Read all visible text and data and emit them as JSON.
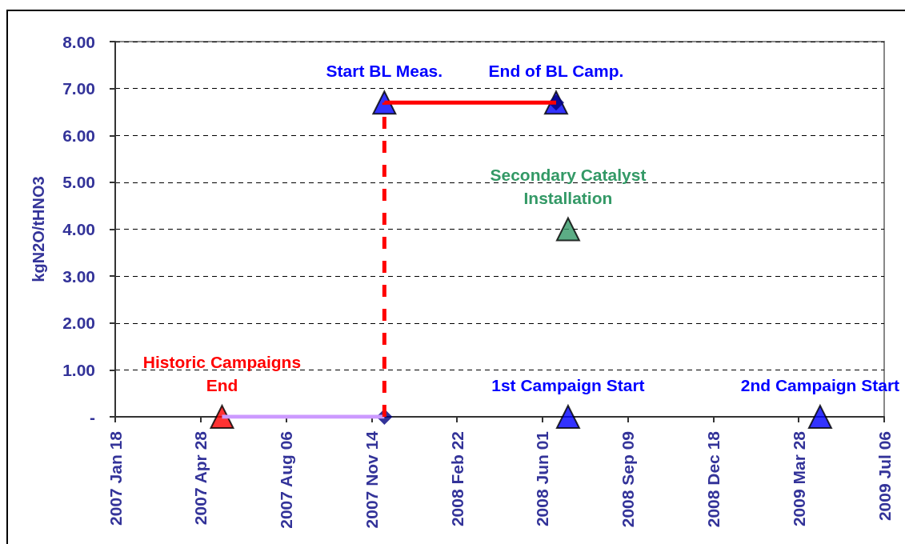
{
  "chart_data": {
    "type": "scatter",
    "ylabel": "kgN2O/tHNO3",
    "xlim": [
      "2007-01-18",
      "2009-07-06"
    ],
    "xticks": [
      {
        "value": "2007-01-18",
        "label": "2007 Jan 18"
      },
      {
        "value": "2007-04-28",
        "label": "2007 Apr 28"
      },
      {
        "value": "2007-08-06",
        "label": "2007 Aug 06"
      },
      {
        "value": "2007-11-14",
        "label": "2007 Nov 14"
      },
      {
        "value": "2008-02-22",
        "label": "2008 Feb 22"
      },
      {
        "value": "2008-06-01",
        "label": "2008 Jun 01"
      },
      {
        "value": "2008-09-09",
        "label": "2008 Sep 09"
      },
      {
        "value": "2008-12-18",
        "label": "2008 Dec 18"
      },
      {
        "value": "2009-03-28",
        "label": "2009 Mar 28"
      },
      {
        "value": "2009-07-06",
        "label": "2009 Jul 06"
      }
    ],
    "ylim": [
      0,
      8
    ],
    "yticks": [
      {
        "value": 0,
        "label": "-"
      },
      {
        "value": 1,
        "label": "1.00"
      },
      {
        "value": 2,
        "label": "2.00"
      },
      {
        "value": 3,
        "label": "3.00"
      },
      {
        "value": 4,
        "label": "4.00"
      },
      {
        "value": 5,
        "label": "5.00"
      },
      {
        "value": 6,
        "label": "6.00"
      },
      {
        "value": 7,
        "label": "7.00"
      },
      {
        "value": 8,
        "label": "8.00"
      }
    ],
    "grid": "y",
    "series": [
      {
        "type": "line",
        "color": "#cc99ff",
        "x": [
          "2007-05-23",
          "2007-11-29"
        ],
        "values": [
          0,
          0
        ],
        "marker": "none",
        "line_style": "solid"
      },
      {
        "type": "line",
        "color": "#ff0000",
        "x": [
          "2007-11-29",
          "2007-11-29"
        ],
        "values": [
          0,
          6.7
        ],
        "marker": "none",
        "line_style": "dashed"
      },
      {
        "type": "line",
        "color": "#ff0000",
        "x": [
          "2007-11-29",
          "2008-06-17"
        ],
        "values": [
          6.7,
          6.7
        ],
        "marker": "none",
        "line_style": "solid"
      },
      {
        "type": "scatter",
        "color": "#0000ff",
        "x": [
          "2007-11-29",
          "2008-06-17",
          "2008-07-01",
          "2009-04-22"
        ],
        "values": [
          6.7,
          6.7,
          0,
          0
        ],
        "marker": "triangle"
      },
      {
        "type": "scatter",
        "color": "#ff0000",
        "x": [
          "2007-05-23"
        ],
        "values": [
          0
        ],
        "marker": "triangle"
      },
      {
        "type": "scatter",
        "color": "#339966",
        "x": [
          "2008-07-01"
        ],
        "values": [
          4
        ],
        "marker": "triangle"
      },
      {
        "type": "scatter",
        "color": "#000080",
        "x": [
          "2007-11-29",
          "2008-06-17"
        ],
        "values": [
          0,
          6.7
        ],
        "marker": "diamond"
      }
    ],
    "annotations": [
      {
        "text": "Historic Campaigns\nEnd",
        "x": "2007-05-23",
        "y": 0
      },
      {
        "text": "Start BL Meas.",
        "x": "2007-11-29",
        "y": 6.7
      },
      {
        "text": "End of BL Camp.",
        "x": "2008-06-17",
        "y": 6.7
      },
      {
        "text": "Secondary Catalyst\nInstallation",
        "x": "2008-07-01",
        "y": 4
      },
      {
        "text": "1st Campaign Start",
        "x": "2008-07-01",
        "y": 0
      },
      {
        "text": "2nd Campaign Start",
        "x": "2009-04-22",
        "y": 0
      }
    ]
  }
}
